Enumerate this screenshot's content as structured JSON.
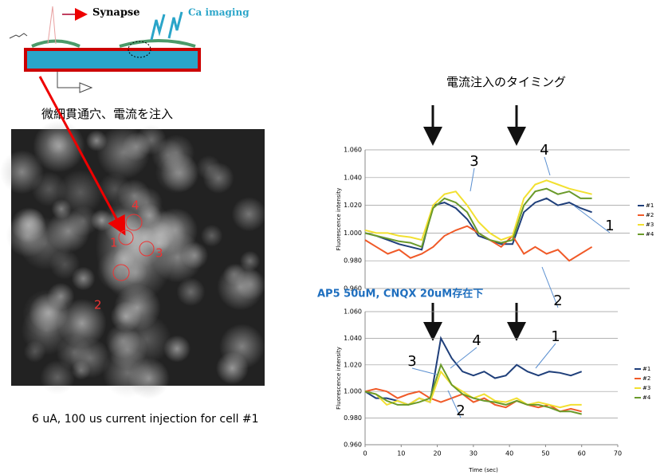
{
  "diagram": {
    "synapse": "Synapse",
    "imaging": "Ca imaging",
    "injection": "微細貫通穴、電流を注入"
  },
  "image": {
    "cells": [
      "1",
      "2",
      "3",
      "4"
    ],
    "caption": "6 uA, 100 us current injection for cell #1"
  },
  "timing_label": "電流注入のタイミング",
  "chart_data": [
    {
      "type": "line",
      "ylabel": "Fluorescence intensity",
      "xlim": [
        0,
        70
      ],
      "ylim": [
        0.96,
        1.06
      ],
      "yticks": [
        {
          "value": 0.96,
          "label": "0.960"
        },
        {
          "value": 0.98,
          "label": "0.980"
        },
        {
          "value": 1.0,
          "label": "1.000"
        },
        {
          "value": 1.02,
          "label": "1.020"
        },
        {
          "value": 1.04,
          "label": "1.040"
        },
        {
          "value": 1.06,
          "label": "1.060"
        }
      ],
      "grid": true,
      "legend": "right",
      "x": [
        0,
        3,
        6,
        9,
        12,
        15,
        18,
        21,
        24,
        27,
        30,
        33,
        36,
        39,
        42,
        45,
        48,
        51,
        54,
        57,
        60
      ],
      "annotations": [
        "3",
        "4",
        "1",
        "2"
      ],
      "series": [
        {
          "name": "#1",
          "color": "#1f3f7a",
          "values": [
            1.0,
            0.998,
            0.995,
            0.992,
            0.99,
            0.988,
            1.02,
            1.022,
            1.018,
            1.01,
            0.998,
            0.995,
            0.992,
            0.992,
            1.015,
            1.022,
            1.025,
            1.02,
            1.022,
            1.018,
            1.015
          ]
        },
        {
          "name": "#2",
          "color": "#f05a28",
          "values": [
            0.995,
            0.99,
            0.985,
            0.988,
            0.982,
            0.985,
            0.99,
            0.998,
            1.002,
            1.005,
            1.0,
            0.995,
            0.99,
            0.998,
            0.985,
            0.99,
            0.985,
            0.988,
            0.98,
            0.985,
            0.99
          ]
        },
        {
          "name": "#3",
          "color": "#f2e030",
          "values": [
            1.002,
            1.0,
            1.0,
            0.998,
            0.997,
            0.995,
            1.02,
            1.028,
            1.03,
            1.02,
            1.008,
            1.0,
            0.995,
            0.998,
            1.025,
            1.035,
            1.038,
            1.035,
            1.032,
            1.03,
            1.028
          ]
        },
        {
          "name": "#4",
          "color": "#6a9a2a",
          "values": [
            1.0,
            0.998,
            0.996,
            0.994,
            0.993,
            0.99,
            1.018,
            1.025,
            1.022,
            1.015,
            1.0,
            0.995,
            0.993,
            0.995,
            1.02,
            1.03,
            1.032,
            1.028,
            1.03,
            1.025,
            1.025
          ]
        }
      ]
    },
    {
      "type": "line",
      "title": "AP5 50uM, CNQX 20uM存在下",
      "xlabel": "Time (sec)",
      "ylabel": "Fluorescence intensity",
      "xlim": [
        0,
        70
      ],
      "xticks": [
        0,
        10,
        20,
        30,
        40,
        50,
        60,
        70
      ],
      "ylim": [
        0.96,
        1.06
      ],
      "yticks": [
        {
          "value": 0.96,
          "label": "0.960"
        },
        {
          "value": 0.98,
          "label": "0.980"
        },
        {
          "value": 1.0,
          "label": "1.000"
        },
        {
          "value": 1.02,
          "label": "1.020"
        },
        {
          "value": 1.04,
          "label": "1.040"
        },
        {
          "value": 1.06,
          "label": "1.060"
        }
      ],
      "grid": true,
      "legend": "right",
      "x": [
        0,
        3,
        6,
        9,
        12,
        15,
        18,
        21,
        24,
        27,
        30,
        33,
        36,
        39,
        42,
        45,
        48,
        51,
        54,
        57,
        60
      ],
      "annotations": [
        "3",
        "4",
        "1",
        "2"
      ],
      "series": [
        {
          "name": "#1",
          "color": "#1f3f7a",
          "values": [
            1.0,
            0.995,
            0.995,
            0.993,
            0.99,
            0.995,
            0.992,
            1.04,
            1.025,
            1.015,
            1.012,
            1.015,
            1.01,
            1.012,
            1.02,
            1.015,
            1.012,
            1.015,
            1.014,
            1.012,
            1.015
          ]
        },
        {
          "name": "#2",
          "color": "#f05a28",
          "values": [
            1.0,
            1.002,
            1.0,
            0.995,
            0.998,
            1.0,
            0.995,
            0.992,
            0.995,
            0.998,
            0.992,
            0.995,
            0.99,
            0.988,
            0.993,
            0.99,
            0.988,
            0.99,
            0.985,
            0.987,
            0.985
          ]
        },
        {
          "name": "#3",
          "color": "#f2e030",
          "values": [
            1.0,
            0.998,
            0.99,
            0.993,
            0.99,
            0.995,
            0.992,
            1.015,
            1.005,
            1.0,
            0.995,
            0.998,
            0.993,
            0.992,
            0.995,
            0.99,
            0.992,
            0.99,
            0.988,
            0.99,
            0.99
          ]
        },
        {
          "name": "#4",
          "color": "#6a9a2a",
          "values": [
            1.0,
            0.998,
            0.993,
            0.99,
            0.99,
            0.992,
            0.995,
            1.02,
            1.005,
            0.998,
            0.995,
            0.993,
            0.992,
            0.99,
            0.993,
            0.99,
            0.99,
            0.988,
            0.985,
            0.985,
            0.983
          ]
        }
      ]
    }
  ]
}
